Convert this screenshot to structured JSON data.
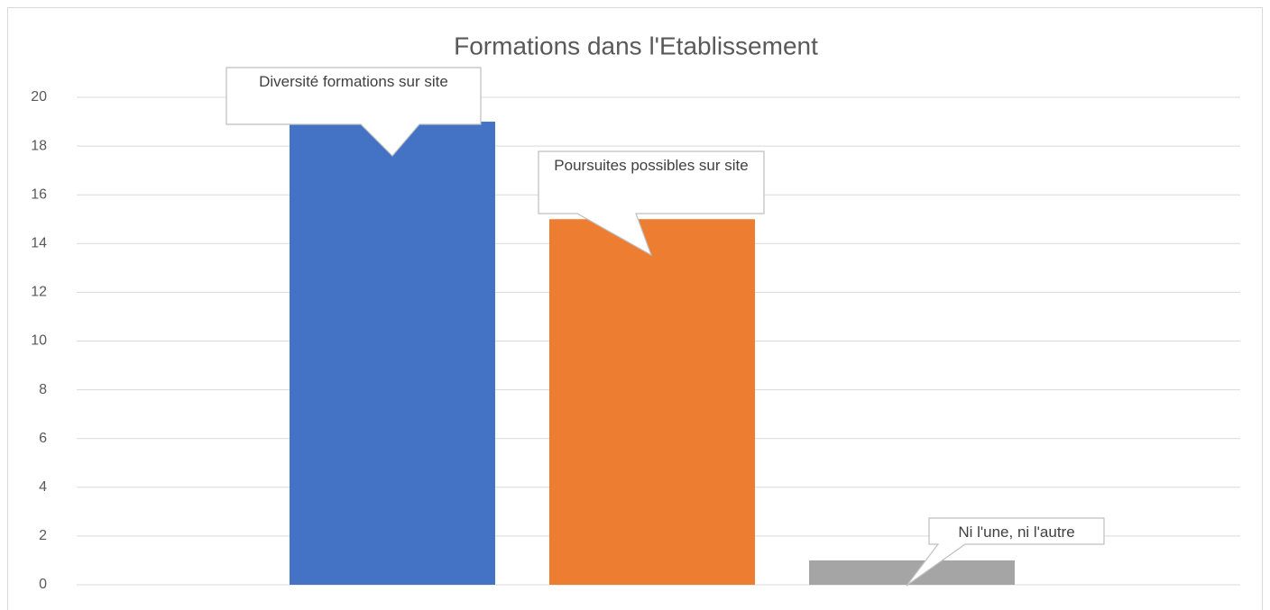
{
  "chart_data": {
    "type": "bar",
    "title": "Formations dans l'Etablissement",
    "categories": [
      null
    ],
    "series": [
      {
        "name": "Diversité formations sur site",
        "color": "#4472c4",
        "values": [
          19
        ]
      },
      {
        "name": "Poursuites possibles sur site",
        "color": "#ed7d31",
        "values": [
          15
        ]
      },
      {
        "name": "Ni l'une, ni l'autre",
        "color": "#a5a5a5",
        "values": [
          1
        ]
      }
    ],
    "ylim": [
      0,
      20
    ],
    "yticks": [
      0,
      2,
      4,
      6,
      8,
      10,
      12,
      14,
      16,
      18,
      20
    ],
    "grid": true
  }
}
